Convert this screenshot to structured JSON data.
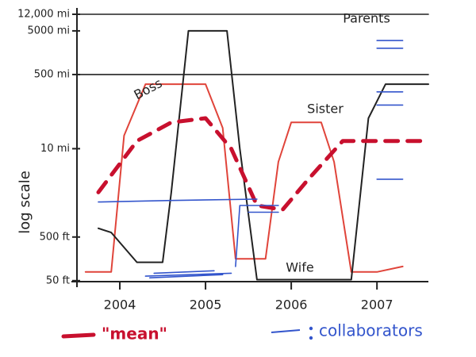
{
  "chart_data": {
    "type": "line",
    "ylabel": "log scale",
    "log_y": true,
    "xlim": [
      2003.5,
      2007.6
    ],
    "xticks": [
      2004,
      2005,
      2006,
      2007
    ],
    "ylim": [
      0.009,
      12000
    ],
    "yticks": [
      {
        "value": 12000,
        "label": "12,000 mi"
      },
      {
        "value": 5000,
        "label": "5000 mi"
      },
      {
        "value": 500,
        "label": "500 mi"
      },
      {
        "value": 10,
        "label": "10 mi"
      },
      {
        "value": 0.0947,
        "label": "500 ft"
      },
      {
        "value": 0.00947,
        "label": "50 ft"
      }
    ],
    "series": [
      {
        "name": "Parents",
        "color": "#222222",
        "x": [
          2003.5,
          2007.6
        ],
        "values": [
          12000,
          12000
        ]
      },
      {
        "name": "Sister",
        "color": "#222222",
        "x": [
          2003.5,
          2007.6
        ],
        "values": [
          500,
          500
        ]
      },
      {
        "name": "Boss",
        "color": "#e0443a",
        "x": [
          2003.6,
          2003.9,
          2004.05,
          2004.3,
          2005.0,
          2005.2,
          2005.35,
          2005.7,
          2005.85,
          2006.0,
          2006.35,
          2006.5,
          2006.7,
          2007.0,
          2007.3
        ],
        "values": [
          0.015,
          0.015,
          20,
          300,
          300,
          30,
          0.03,
          0.03,
          5,
          40,
          40,
          5,
          0.015,
          0.015,
          0.02
        ]
      },
      {
        "name": "Wife",
        "color": "#222222",
        "x": [
          2003.75,
          2003.9,
          2004.2,
          2004.5,
          2004.6,
          2004.8,
          2005.25,
          2005.4,
          2005.6,
          2006.5,
          2006.7,
          2006.9,
          2007.1,
          2007.6
        ],
        "values": [
          0.15,
          0.12,
          0.025,
          0.025,
          1,
          5000,
          5000,
          10,
          0.01,
          0.01,
          0.01,
          50,
          300,
          300
        ]
      },
      {
        "name": "\"mean\"",
        "color": "#c8102e",
        "dashed": true,
        "x": [
          2003.75,
          2004.2,
          2004.6,
          2005.0,
          2005.3,
          2005.6,
          2005.9,
          2006.2,
          2006.6,
          2007.0,
          2007.6
        ],
        "values": [
          1,
          15,
          40,
          50,
          10,
          0.5,
          0.4,
          2,
          15,
          15,
          15
        ]
      },
      {
        "name": "collaborators",
        "color": "#3355cc",
        "x": [
          2003.75,
          2004.6,
          2005.6,
          null,
          2005.35,
          2005.4,
          2005.85,
          null,
          2005.5,
          2005.85,
          null,
          2004.3,
          2005.3,
          null,
          2004.4,
          2005.1,
          null,
          2004.35,
          2005.2,
          null,
          2007.0,
          2007.3,
          null,
          2007.0,
          2007.3,
          null,
          2007.0,
          2007.3,
          null,
          2007.0,
          2007.3,
          null,
          2007.0,
          2007.3
        ],
        "values": [
          0.6,
          0.65,
          0.7,
          null,
          0.02,
          0.5,
          0.5,
          null,
          0.35,
          0.35,
          null,
          0.012,
          0.014,
          null,
          0.014,
          0.016,
          null,
          0.011,
          0.013,
          null,
          3000,
          3000,
          null,
          2000,
          2000,
          null,
          200,
          200,
          null,
          100,
          100,
          null,
          2,
          2
        ]
      }
    ]
  }
}
